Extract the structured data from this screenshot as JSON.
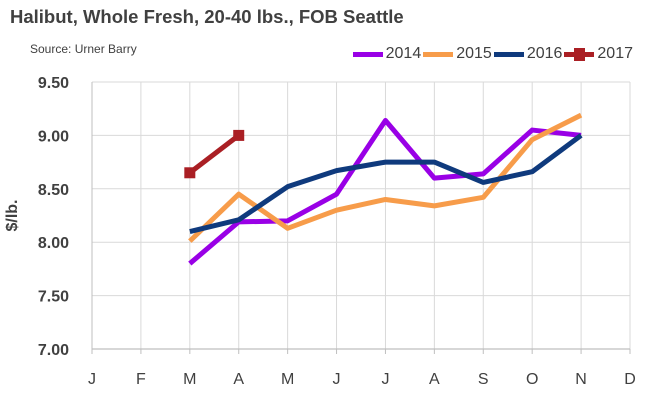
{
  "title": "Halibut, Whole Fresh, 20-40 lbs., FOB Seattle",
  "source": "Source: Urner Barry",
  "chart_data": {
    "type": "line",
    "title": "Halibut, Whole Fresh, 20-40 lbs., FOB Seattle",
    "xlabel": "",
    "ylabel": "$/lb.",
    "ylim": [
      7.0,
      9.5
    ],
    "yticks": [
      "7.00",
      "7.50",
      "8.00",
      "8.50",
      "9.00",
      "9.50"
    ],
    "ytick_values": [
      7.0,
      7.5,
      8.0,
      8.5,
      9.0,
      9.5
    ],
    "categories": [
      "J",
      "F",
      "M",
      "A",
      "M",
      "J",
      "J",
      "A",
      "S",
      "O",
      "N",
      "D"
    ],
    "grid": true,
    "legend_position": "top-right",
    "series": [
      {
        "name": "2014",
        "color": "#9900E6",
        "marker": "none",
        "values": [
          null,
          null,
          7.8,
          8.19,
          8.2,
          8.45,
          9.14,
          8.6,
          8.64,
          9.05,
          9.0,
          null
        ]
      },
      {
        "name": "2015",
        "color": "#F79C4A",
        "marker": "none",
        "values": [
          null,
          null,
          8.01,
          8.45,
          8.13,
          8.3,
          8.4,
          8.34,
          8.42,
          8.96,
          9.19,
          null
        ]
      },
      {
        "name": "2016",
        "color": "#0F3A7D",
        "marker": "none",
        "values": [
          null,
          null,
          8.1,
          8.21,
          8.52,
          8.67,
          8.75,
          8.75,
          8.56,
          8.66,
          9.0,
          null
        ]
      },
      {
        "name": "2017",
        "color": "#AA1F24",
        "marker": "square",
        "values": [
          null,
          null,
          8.65,
          9.0,
          null,
          null,
          null,
          null,
          null,
          null,
          null,
          null
        ]
      }
    ]
  }
}
